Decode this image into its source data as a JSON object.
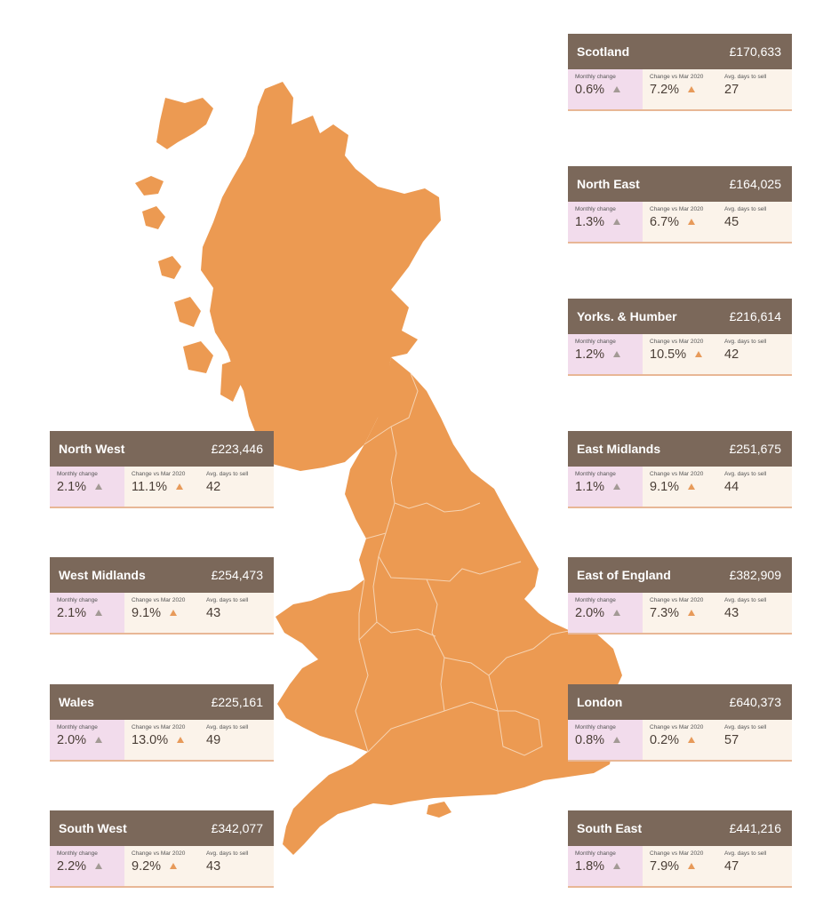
{
  "labels": {
    "monthly_change": "Monthly change",
    "change_vs_mar_2020": "Change vs Mar 2020",
    "avg_days_to_sell": "Avg. days to sell"
  },
  "colors": {
    "map_fill": "#ec9a52",
    "header_bg": "#7b685a",
    "monthly_cell_bg": "#f2dcec",
    "other_cell_bg": "#fbf3ea",
    "accent_underline": "#e8b796",
    "indicator_grey": "#a39a95",
    "indicator_orange": "#e79a5a"
  },
  "regions": [
    {
      "name": "Scotland",
      "price": "£170,633",
      "monthly_change": "0.6%",
      "change_vs_mar_2020": "7.2%",
      "avg_days_to_sell": "27"
    },
    {
      "name": "North East",
      "price": "£164,025",
      "monthly_change": "1.3%",
      "change_vs_mar_2020": "6.7%",
      "avg_days_to_sell": "45"
    },
    {
      "name": "Yorks. & Humber",
      "price": "£216,614",
      "monthly_change": "1.2%",
      "change_vs_mar_2020": "10.5%",
      "avg_days_to_sell": "42"
    },
    {
      "name": "East Midlands",
      "price": "£251,675",
      "monthly_change": "1.1%",
      "change_vs_mar_2020": "9.1%",
      "avg_days_to_sell": "44"
    },
    {
      "name": "East of England",
      "price": "£382,909",
      "monthly_change": "2.0%",
      "change_vs_mar_2020": "7.3%",
      "avg_days_to_sell": "43"
    },
    {
      "name": "London",
      "price": "£640,373",
      "monthly_change": "0.8%",
      "change_vs_mar_2020": "0.2%",
      "avg_days_to_sell": "57"
    },
    {
      "name": "South East",
      "price": "£441,216",
      "monthly_change": "1.8%",
      "change_vs_mar_2020": "7.9%",
      "avg_days_to_sell": "47"
    },
    {
      "name": "North West",
      "price": "£223,446",
      "monthly_change": "2.1%",
      "change_vs_mar_2020": "11.1%",
      "avg_days_to_sell": "42"
    },
    {
      "name": "West Midlands",
      "price": "£254,473",
      "monthly_change": "2.1%",
      "change_vs_mar_2020": "9.1%",
      "avg_days_to_sell": "43"
    },
    {
      "name": "Wales",
      "price": "£225,161",
      "monthly_change": "2.0%",
      "change_vs_mar_2020": "13.0%",
      "avg_days_to_sell": "49"
    },
    {
      "name": "South West",
      "price": "£342,077",
      "monthly_change": "2.2%",
      "change_vs_mar_2020": "9.2%",
      "avg_days_to_sell": "43"
    }
  ]
}
